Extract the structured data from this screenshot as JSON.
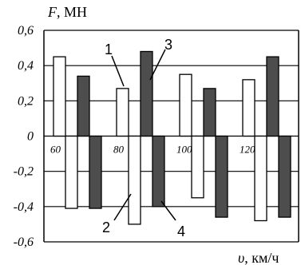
{
  "chart_data": {
    "type": "bar",
    "ylabel_symbol": "F",
    "ylabel_unit": "МН",
    "xlabel_symbol": "υ",
    "xlabel_unit": "км/ч",
    "ylim": [
      -0.6,
      0.6
    ],
    "yticks": [
      "0,6",
      "0,4",
      "0,2",
      "0",
      "-0,2",
      "-0,4",
      "-0,6"
    ],
    "ytick_values": [
      0.6,
      0.4,
      0.2,
      0,
      -0.2,
      -0.4,
      -0.6
    ],
    "categories": [
      "60",
      "80",
      "100",
      "120"
    ],
    "grid": "horizontal",
    "series": [
      {
        "name": "1",
        "color": "#ffffff",
        "values": [
          0.45,
          0.27,
          0.35,
          0.32
        ]
      },
      {
        "name": "2",
        "color": "#ffffff",
        "values": [
          -0.41,
          -0.5,
          -0.35,
          -0.48
        ]
      },
      {
        "name": "3",
        "color": "#4d4d4d",
        "values": [
          0.34,
          0.48,
          0.27,
          0.45
        ]
      },
      {
        "name": "4",
        "color": "#4d4d4d",
        "values": [
          -0.41,
          -0.4,
          -0.46,
          -0.46
        ]
      }
    ],
    "callouts": [
      "1",
      "2",
      "3",
      "4"
    ]
  }
}
